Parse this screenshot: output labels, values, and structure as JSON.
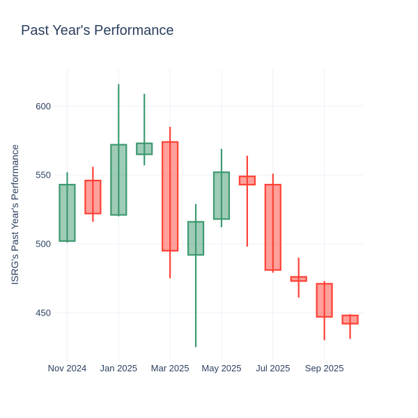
{
  "header": {
    "title": "Past Year's Performance"
  },
  "chart_data": {
    "type": "candlestick",
    "title": "Past Year's Performance",
    "xlabel": "",
    "ylabel": "ISRG's Past Year's Performance",
    "ylim": [
      415,
      627
    ],
    "y_ticks": [
      450,
      500,
      550,
      600
    ],
    "x_tick_labels": [
      "Nov 2024",
      "Jan 2025",
      "Mar 2025",
      "May 2025",
      "Jul 2025",
      "Sep 2025"
    ],
    "x_tick_indices": [
      0,
      2,
      4,
      6,
      8,
      10
    ],
    "grid": true,
    "legend_position": "none",
    "candles": [
      {
        "label": "Nov 2024",
        "open": 502,
        "high": 552,
        "low": 501,
        "close": 543
      },
      {
        "label": "Dec 2024",
        "open": 546,
        "high": 556,
        "low": 516,
        "close": 522
      },
      {
        "label": "Jan 2025",
        "open": 521,
        "high": 616,
        "low": 520,
        "close": 572
      },
      {
        "label": "Feb 2025",
        "open": 565,
        "high": 609,
        "low": 557,
        "close": 573
      },
      {
        "label": "Mar 2025",
        "open": 574,
        "high": 585,
        "low": 475,
        "close": 495
      },
      {
        "label": "Apr 2025",
        "open": 492,
        "high": 529,
        "low": 425,
        "close": 516
      },
      {
        "label": "May 2025",
        "open": 518,
        "high": 569,
        "low": 512,
        "close": 552
      },
      {
        "label": "Jun 2025",
        "open": 549,
        "high": 564,
        "low": 498,
        "close": 543
      },
      {
        "label": "Jul 2025",
        "open": 543,
        "high": 551,
        "low": 479,
        "close": 481
      },
      {
        "label": "Aug 2025",
        "open": 476,
        "high": 490,
        "low": 461,
        "close": 473
      },
      {
        "label": "Sep 2025",
        "open": 471,
        "high": 473,
        "low": 430,
        "close": 447
      },
      {
        "label": "Oct 2025",
        "open": 448,
        "high": 449,
        "low": 431,
        "close": 442
      }
    ],
    "colors": {
      "increasing_line": "#3D9970",
      "increasing_fill": "#9ECCB8",
      "decreasing_line": "#FF4136",
      "decreasing_fill": "#FFA09A",
      "gridline": "#EBF0F8",
      "text": "#2A3F5F",
      "background": "#FFFFFF"
    }
  }
}
